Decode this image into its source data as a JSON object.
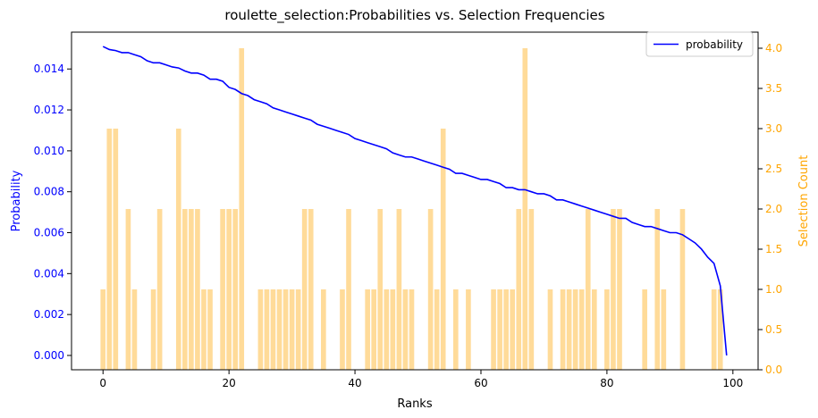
{
  "chart_data": {
    "type": "bar+line",
    "title": "roulette_selection:Probabilities vs. Selection Frequencies",
    "xlabel": "Ranks",
    "ylabel_left": "Probability",
    "ylabel_right": "Selection Count",
    "xlim": [
      -5,
      104
    ],
    "ylim_left": [
      -0.0007,
      0.0158
    ],
    "ylim_right": [
      0,
      4.2
    ],
    "x_ticks": [
      0,
      20,
      40,
      60,
      80,
      100
    ],
    "y_left_ticks": [
      "0.000",
      "0.002",
      "0.004",
      "0.006",
      "0.008",
      "0.010",
      "0.012",
      "0.014"
    ],
    "y_right_ticks": [
      "0.0",
      "0.5",
      "1.0",
      "1.5",
      "2.0",
      "2.5",
      "3.0",
      "3.5",
      "4.0"
    ],
    "legend": {
      "placement": "top-right",
      "entries": [
        "probability"
      ]
    },
    "colors": {
      "line": "#0000ff",
      "bars": "#ffa500",
      "left_axis": "#0000ff",
      "right_axis": "#ffa500"
    },
    "grid": false,
    "series": [
      {
        "name": "probability",
        "kind": "line",
        "values": [
          0.0151,
          0.01495,
          0.0149,
          0.0148,
          0.0148,
          0.0147,
          0.0146,
          0.0144,
          0.0143,
          0.0143,
          0.0142,
          0.0141,
          0.01405,
          0.0139,
          0.0138,
          0.0138,
          0.0137,
          0.0135,
          0.0135,
          0.0134,
          0.0131,
          0.013,
          0.0128,
          0.0127,
          0.0125,
          0.0124,
          0.0123,
          0.0121,
          0.012,
          0.0119,
          0.0118,
          0.0117,
          0.0116,
          0.0115,
          0.0113,
          0.0112,
          0.0111,
          0.011,
          0.0109,
          0.0108,
          0.0106,
          0.0105,
          0.0104,
          0.0103,
          0.0102,
          0.0101,
          0.0099,
          0.0098,
          0.0097,
          0.0097,
          0.0096,
          0.0095,
          0.0094,
          0.0093,
          0.0092,
          0.0091,
          0.0089,
          0.0089,
          0.0088,
          0.0087,
          0.0086,
          0.0086,
          0.0085,
          0.0084,
          0.0082,
          0.0082,
          0.0081,
          0.0081,
          0.008,
          0.0079,
          0.0079,
          0.0078,
          0.0076,
          0.0076,
          0.0075,
          0.0074,
          0.0073,
          0.0072,
          0.0071,
          0.007,
          0.0069,
          0.0068,
          0.0067,
          0.0067,
          0.0065,
          0.0064,
          0.0063,
          0.0063,
          0.0062,
          0.0061,
          0.006,
          0.006,
          0.0059,
          0.0057,
          0.0055,
          0.0052,
          0.0048,
          0.0045,
          0.0034,
          0.0
        ]
      },
      {
        "name": "",
        "kind": "bar",
        "values": [
          1,
          3,
          3,
          0,
          2,
          1,
          0,
          0,
          1,
          2,
          0,
          0,
          3,
          2,
          2,
          2,
          1,
          1,
          0,
          2,
          2,
          2,
          4,
          0,
          0,
          1,
          1,
          1,
          1,
          1,
          1,
          1,
          2,
          2,
          0,
          1,
          0,
          0,
          1,
          2,
          0,
          0,
          1,
          1,
          2,
          1,
          1,
          2,
          1,
          1,
          0,
          0,
          2,
          1,
          3,
          0,
          1,
          0,
          1,
          0,
          0,
          0,
          1,
          1,
          1,
          1,
          2,
          4,
          2,
          0,
          0,
          1,
          0,
          1,
          1,
          1,
          1,
          2,
          1,
          0,
          1,
          2,
          2,
          0,
          0,
          0,
          1,
          0,
          2,
          1,
          0,
          0,
          2,
          0,
          0,
          0,
          0,
          1,
          1,
          0
        ]
      }
    ]
  }
}
